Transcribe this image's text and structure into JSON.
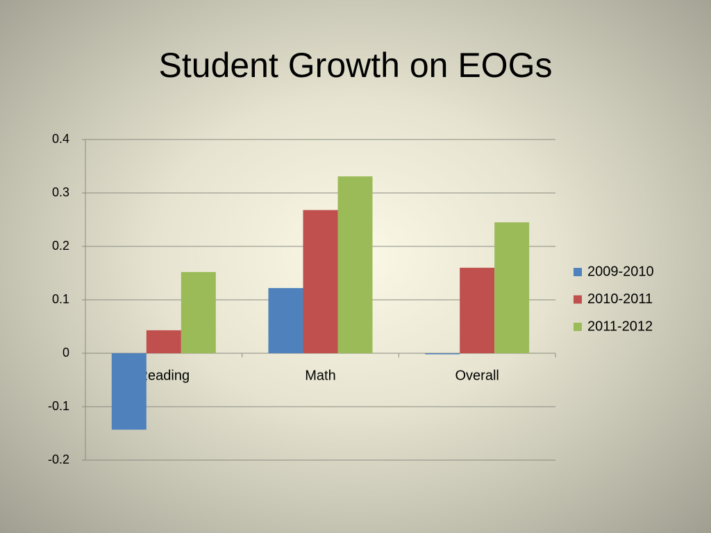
{
  "chart_data": {
    "type": "bar",
    "title": "Student Growth on EOGs",
    "categories": [
      "Reading",
      "Math",
      "Overall"
    ],
    "series": [
      {
        "name": "2009-2010",
        "color": "#4f81bd",
        "values": [
          -0.143,
          0.122,
          -0.002
        ]
      },
      {
        "name": "2010-2011",
        "color": "#c0504d",
        "values": [
          0.043,
          0.268,
          0.16
        ]
      },
      {
        "name": "2011-2012",
        "color": "#9bbb59",
        "values": [
          0.152,
          0.331,
          0.245
        ]
      }
    ],
    "ylim": [
      -0.2,
      0.4
    ],
    "yticks": [
      0.4,
      0.3,
      0.2,
      0.1,
      0,
      -0.1,
      -0.2
    ],
    "grid": true,
    "legend": "right"
  }
}
